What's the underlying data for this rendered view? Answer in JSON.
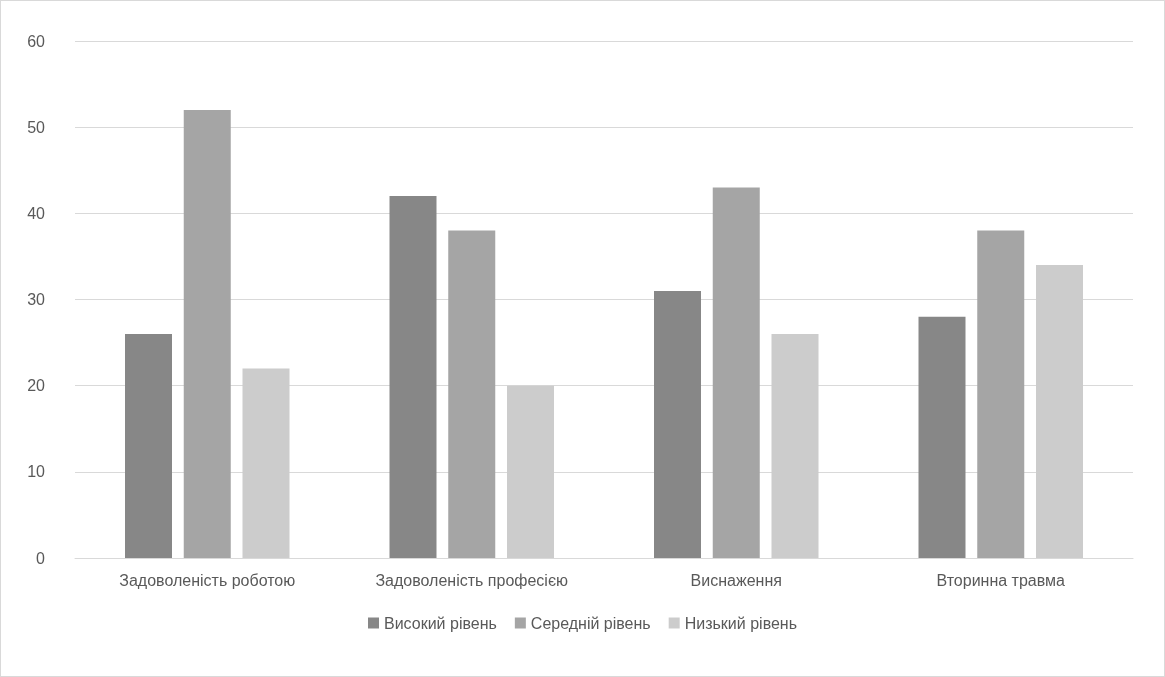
{
  "chart_data": {
    "type": "bar",
    "categories": [
      "Задоволеність роботою",
      "Задоволеність професією",
      "Виснаження",
      "Вторинна травма"
    ],
    "series": [
      {
        "name": "Високий рівень",
        "color": "#878787",
        "values": [
          26,
          42,
          31,
          28
        ]
      },
      {
        "name": "Середній рівень",
        "color": "#a5a5a5",
        "values": [
          52,
          38,
          43,
          38
        ]
      },
      {
        "name": "Низький рівень",
        "color": "#cccccc",
        "values": [
          22,
          20,
          26,
          34
        ]
      }
    ],
    "ylim": [
      0,
      60
    ],
    "yticks": [
      0,
      10,
      20,
      30,
      40,
      50,
      60
    ],
    "grid": "y",
    "legend": "bottom"
  }
}
